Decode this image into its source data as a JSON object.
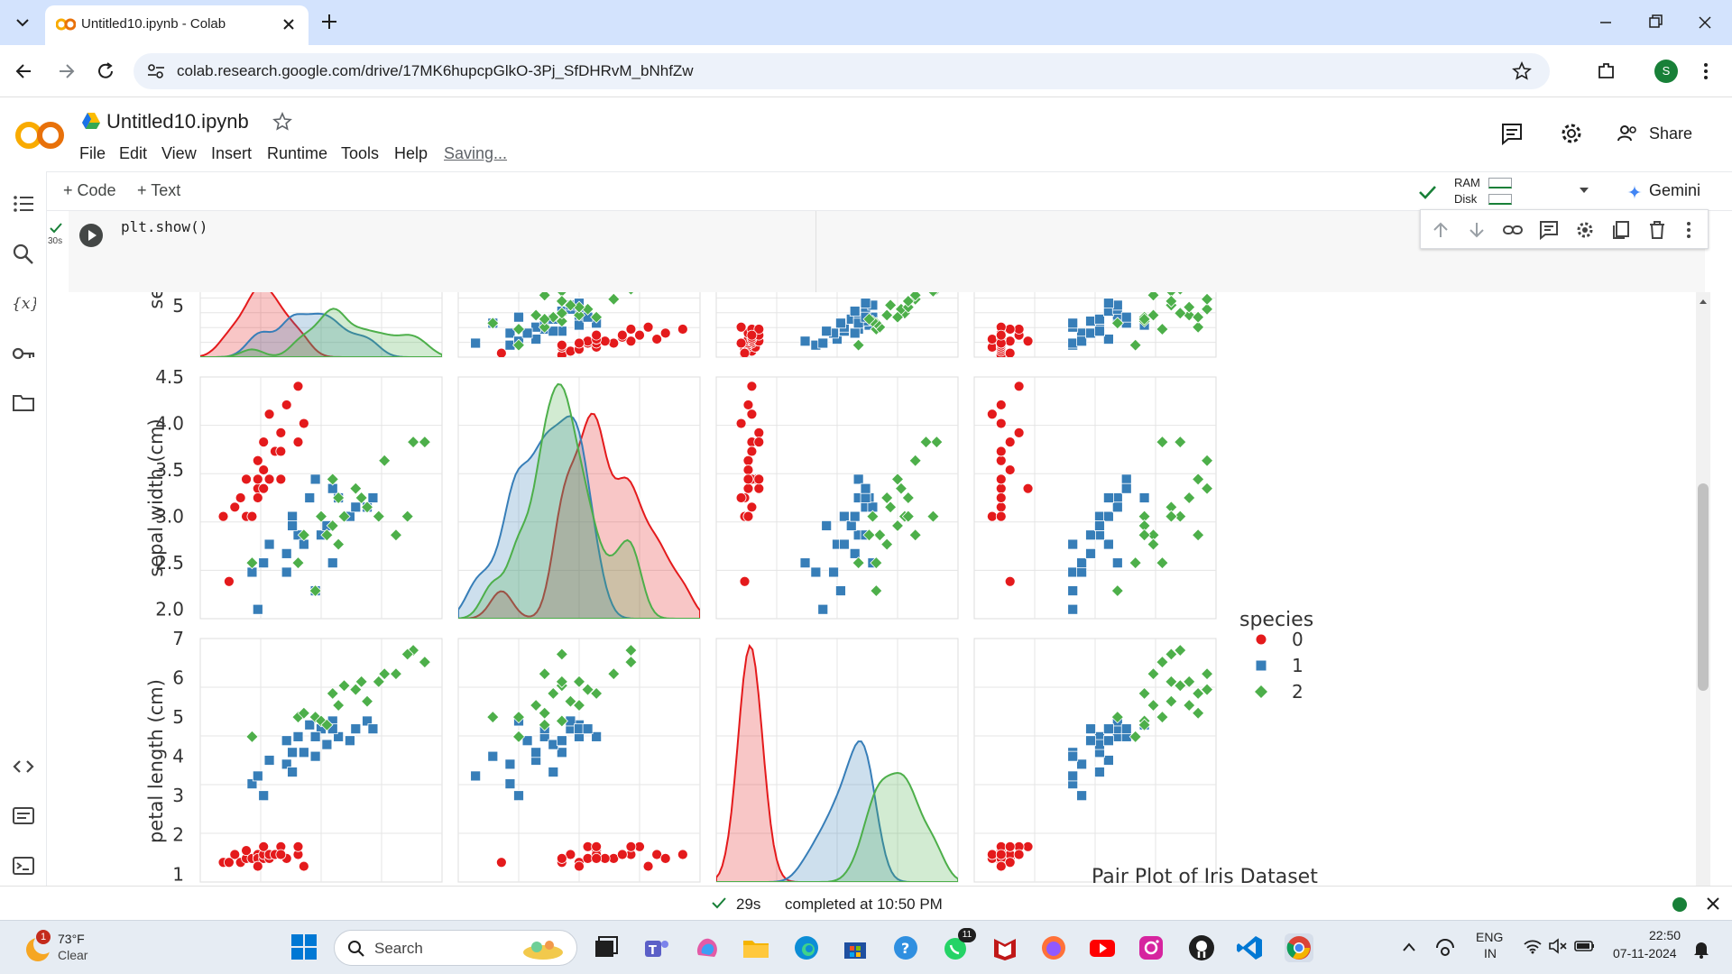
{
  "browser": {
    "tab_title": "Untitled10.ipynb - Colab",
    "url": "colab.research.google.com/drive/17MK6hupcpGlkO-3Pj_SfDHRvM_bNhfZw",
    "profile_initial": "S",
    "accent": "#d3e3fd"
  },
  "colab": {
    "notebook_title": "Untitled10.ipynb",
    "menu": [
      "File",
      "Edit",
      "View",
      "Insert",
      "Runtime",
      "Tools",
      "Help"
    ],
    "saving_label": "Saving...",
    "share_label": "Share",
    "add_code_label": "Code",
    "add_text_label": "Text",
    "ram_label": "RAM",
    "disk_label": "Disk",
    "gemini_label": "Gemini"
  },
  "cell": {
    "exec_time": "30s",
    "code_line": "plt.show()"
  },
  "status": {
    "elapsed": "29s",
    "completed_text": "completed at 10:50 PM"
  },
  "taskbar": {
    "weather_temp": "73°F",
    "weather_desc": "Clear",
    "weather_badge": "1",
    "search_placeholder": "Search",
    "whatsapp_badge": "11",
    "lang_top": "ENG",
    "lang_bottom": "IN",
    "time": "22:50",
    "date": "07-11-2024"
  },
  "chart_data": {
    "type": "scatter",
    "title": "Pair Plot of Iris Dataset",
    "legend_title": "species",
    "legend_placement": "right",
    "legend": [
      {
        "label": "0",
        "color": "#e41a1c",
        "marker": "circle"
      },
      {
        "label": "1",
        "color": "#377eb8",
        "marker": "square"
      },
      {
        "label": "2",
        "color": "#4daf4a",
        "marker": "diamond"
      }
    ],
    "row_labels": [
      "sep",
      "sepal width (cm)",
      "petal length (cm)"
    ],
    "yticks": {
      "sepal_length_row": [
        "5"
      ],
      "sepal_width_row": [
        "2.0",
        "2.5",
        "3.0",
        "3.5",
        "4.0",
        "4.5"
      ],
      "petal_length_row": [
        "1",
        "2",
        "3",
        "4",
        "5",
        "6",
        "7"
      ]
    },
    "ylim": {
      "sepal_width": [
        1.9,
        4.5
      ],
      "petal_length": [
        0.8,
        7.0
      ]
    },
    "xlim": {
      "sepal_length": [
        4.0,
        8.2
      ],
      "sepal_width": [
        1.8,
        4.6
      ],
      "petal_length": [
        0.5,
        7.3
      ],
      "petal_width": [
        -0.1,
        2.6
      ]
    },
    "grid": true,
    "series": [
      {
        "name": "0",
        "sepal_length": [
          4.4,
          4.6,
          4.7,
          4.8,
          4.8,
          4.9,
          5.0,
          5.0,
          5.0,
          5.1,
          5.1,
          5.1,
          5.2,
          5.2,
          5.3,
          5.4,
          5.4,
          5.5,
          5.7,
          5.7,
          5.8,
          4.5,
          5.0,
          5.4
        ],
        "sepal_width": [
          3.0,
          3.1,
          3.2,
          3.0,
          3.4,
          3.0,
          3.3,
          3.4,
          3.6,
          3.5,
          3.8,
          3.3,
          3.4,
          4.1,
          3.7,
          3.9,
          3.4,
          4.2,
          4.4,
          3.8,
          4.0,
          2.3,
          3.2,
          3.7
        ],
        "petal_length": [
          1.3,
          1.5,
          1.3,
          1.4,
          1.6,
          1.4,
          1.4,
          1.5,
          1.4,
          1.4,
          1.5,
          1.7,
          1.4,
          1.5,
          1.5,
          1.7,
          1.7,
          1.4,
          1.5,
          1.7,
          1.2,
          1.3,
          1.2,
          1.5
        ],
        "petal_width": [
          0.2,
          0.2,
          0.2,
          0.1,
          0.2,
          0.2,
          0.2,
          0.2,
          0.2,
          0.3,
          0.3,
          0.5,
          0.2,
          0.1,
          0.2,
          0.4,
          0.2,
          0.2,
          0.4,
          0.3,
          0.2,
          0.3,
          0.2,
          0.2
        ]
      },
      {
        "name": "1",
        "sepal_length": [
          4.9,
          5.0,
          5.2,
          5.5,
          5.6,
          5.7,
          5.8,
          5.9,
          6.0,
          6.1,
          6.2,
          6.3,
          6.4,
          6.6,
          6.7,
          6.9,
          7.0,
          5.1,
          5.5,
          6.0,
          6.3,
          5.6
        ],
        "sepal_width": [
          2.4,
          2.0,
          2.7,
          2.4,
          3.0,
          2.8,
          2.7,
          3.2,
          2.2,
          2.8,
          2.9,
          2.5,
          3.2,
          3.0,
          3.1,
          3.1,
          3.2,
          2.5,
          2.6,
          3.4,
          3.3,
          2.9
        ],
        "petal_length": [
          3.3,
          3.5,
          3.9,
          3.8,
          4.1,
          4.5,
          4.1,
          4.8,
          4.0,
          4.7,
          4.3,
          4.9,
          4.5,
          4.4,
          4.7,
          4.9,
          4.7,
          3.0,
          4.4,
          4.5,
          4.7,
          3.6
        ],
        "petal_width": [
          1.0,
          1.0,
          1.4,
          1.1,
          1.3,
          1.3,
          1.0,
          1.8,
          1.0,
          1.2,
          1.3,
          1.5,
          1.5,
          1.4,
          1.5,
          1.5,
          1.4,
          1.1,
          1.2,
          1.6,
          1.6,
          1.3
        ]
      },
      {
        "name": "2",
        "sepal_length": [
          4.9,
          5.7,
          5.8,
          6.0,
          6.1,
          6.3,
          6.4,
          6.5,
          6.7,
          6.8,
          6.9,
          7.2,
          7.4,
          7.7,
          7.9,
          6.2,
          6.4,
          6.3,
          7.6,
          7.1
        ],
        "sepal_width": [
          2.5,
          2.5,
          2.8,
          2.2,
          3.0,
          2.9,
          3.2,
          3.0,
          3.3,
          3.2,
          3.1,
          3.6,
          2.8,
          3.8,
          3.8,
          2.8,
          2.7,
          3.4,
          3.0,
          3.0
        ],
        "petal_length": [
          4.5,
          5.0,
          5.1,
          5.0,
          4.9,
          5.6,
          5.3,
          5.8,
          5.7,
          5.9,
          5.4,
          6.1,
          6.1,
          6.7,
          6.4,
          4.8,
          5.3,
          5.6,
          6.6,
          5.9
        ],
        "petal_width": [
          1.7,
          2.0,
          2.4,
          1.5,
          1.8,
          1.8,
          2.3,
          2.2,
          2.5,
          2.3,
          2.1,
          2.5,
          1.9,
          2.2,
          2.0,
          1.8,
          1.9,
          2.4,
          2.1,
          2.1
        ]
      }
    ]
  }
}
